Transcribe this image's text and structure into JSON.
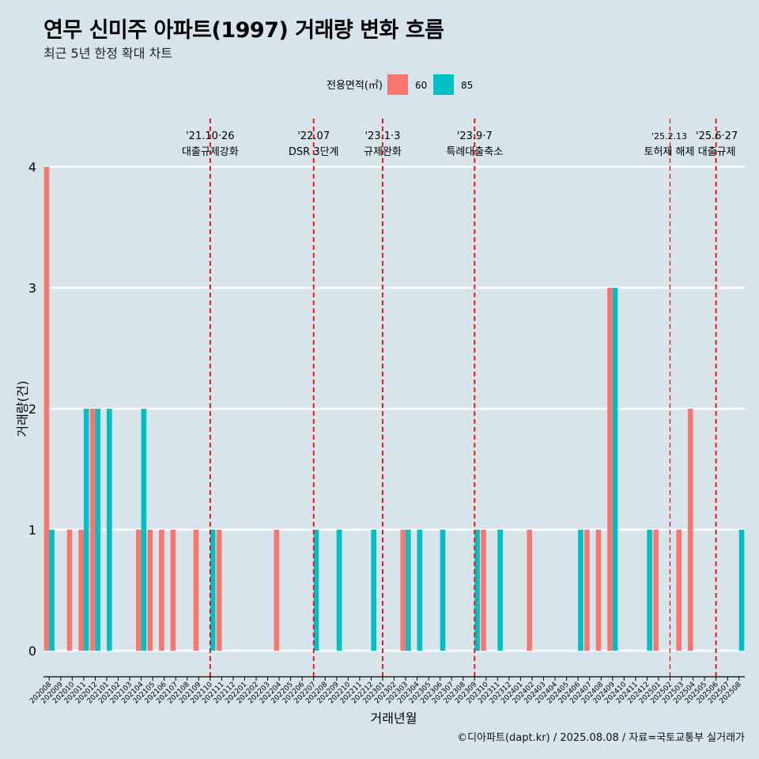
{
  "header": {
    "title": "연무 신미주 아파트(1997) 거래량 변화 흐름",
    "subtitle": "최근 5년 한정 확대 차트"
  },
  "caption": "©디아파트(dapt.kr) / 2025.08.08 / 자료=국토교통부 실거래가",
  "colors": {
    "background": "#d7e4ec",
    "s60": "#f8766d",
    "s85": "#00bfc4",
    "event_line": "#ff0000",
    "grid": "#ffffff"
  },
  "chart_data": {
    "type": "bar",
    "xlabel": "거래년월",
    "ylabel": "거래량(건)",
    "ylim": [
      0,
      4
    ],
    "yticks": [
      "0",
      "1",
      "2",
      "3",
      "4"
    ],
    "legend": {
      "title": "전용면적(㎡)",
      "position": "top",
      "entries": [
        "60",
        "85"
      ]
    },
    "categories": [
      "202008",
      "202009",
      "202010",
      "202011",
      "202012",
      "202101",
      "202102",
      "202103",
      "202104",
      "202105",
      "202106",
      "202107",
      "202108",
      "202109",
      "202110",
      "202111",
      "202112",
      "202201",
      "202202",
      "202203",
      "202204",
      "202205",
      "202206",
      "202207",
      "202208",
      "202209",
      "202210",
      "202211",
      "202212",
      "202301",
      "202302",
      "202303",
      "202304",
      "202305",
      "202306",
      "202307",
      "202308",
      "202309",
      "202310",
      "202311",
      "202312",
      "202401",
      "202402",
      "202403",
      "202404",
      "202405",
      "202406",
      "202407",
      "202408",
      "202409",
      "202410",
      "202411",
      "202412",
      "202501",
      "202502",
      "202503",
      "202504",
      "202505",
      "202506",
      "202507",
      "202508"
    ],
    "series": [
      {
        "name": "60",
        "values": [
          4,
          0,
          1,
          1,
          2,
          0,
          0,
          0,
          1,
          1,
          1,
          1,
          0,
          1,
          0,
          1,
          0,
          0,
          0,
          0,
          1,
          0,
          0,
          0,
          0,
          0,
          0,
          0,
          0,
          0,
          0,
          1,
          0,
          0,
          0,
          0,
          0,
          0,
          1,
          0,
          0,
          0,
          1,
          0,
          0,
          0,
          0,
          1,
          1,
          3,
          0,
          0,
          0,
          1,
          0,
          1,
          2,
          0,
          0,
          0,
          0
        ]
      },
      {
        "name": "85",
        "values": [
          1,
          0,
          0,
          2,
          2,
          2,
          0,
          0,
          2,
          0,
          0,
          0,
          0,
          0,
          1,
          0,
          0,
          0,
          0,
          0,
          0,
          0,
          0,
          1,
          0,
          1,
          0,
          0,
          1,
          0,
          0,
          1,
          1,
          0,
          1,
          0,
          0,
          1,
          0,
          1,
          0,
          0,
          0,
          0,
          0,
          0,
          1,
          0,
          0,
          3,
          0,
          0,
          1,
          0,
          0,
          0,
          0,
          0,
          0,
          0,
          1
        ]
      }
    ],
    "events": [
      {
        "month": "202110",
        "date": "'21.10·26",
        "label": "대출규제강화"
      },
      {
        "month": "202207",
        "date": "'22.07",
        "label": "DSR 3단계"
      },
      {
        "month": "202301",
        "date": "'23.1·3",
        "label": "규제완화"
      },
      {
        "month": "202309",
        "date": "'23.9·7",
        "label": "특례대출축소"
      },
      {
        "month": "202502",
        "date": "'25.2.13",
        "label": "토허제 해제"
      },
      {
        "month": "202506",
        "date": "'25.6·27",
        "label": "대출규제"
      }
    ]
  }
}
